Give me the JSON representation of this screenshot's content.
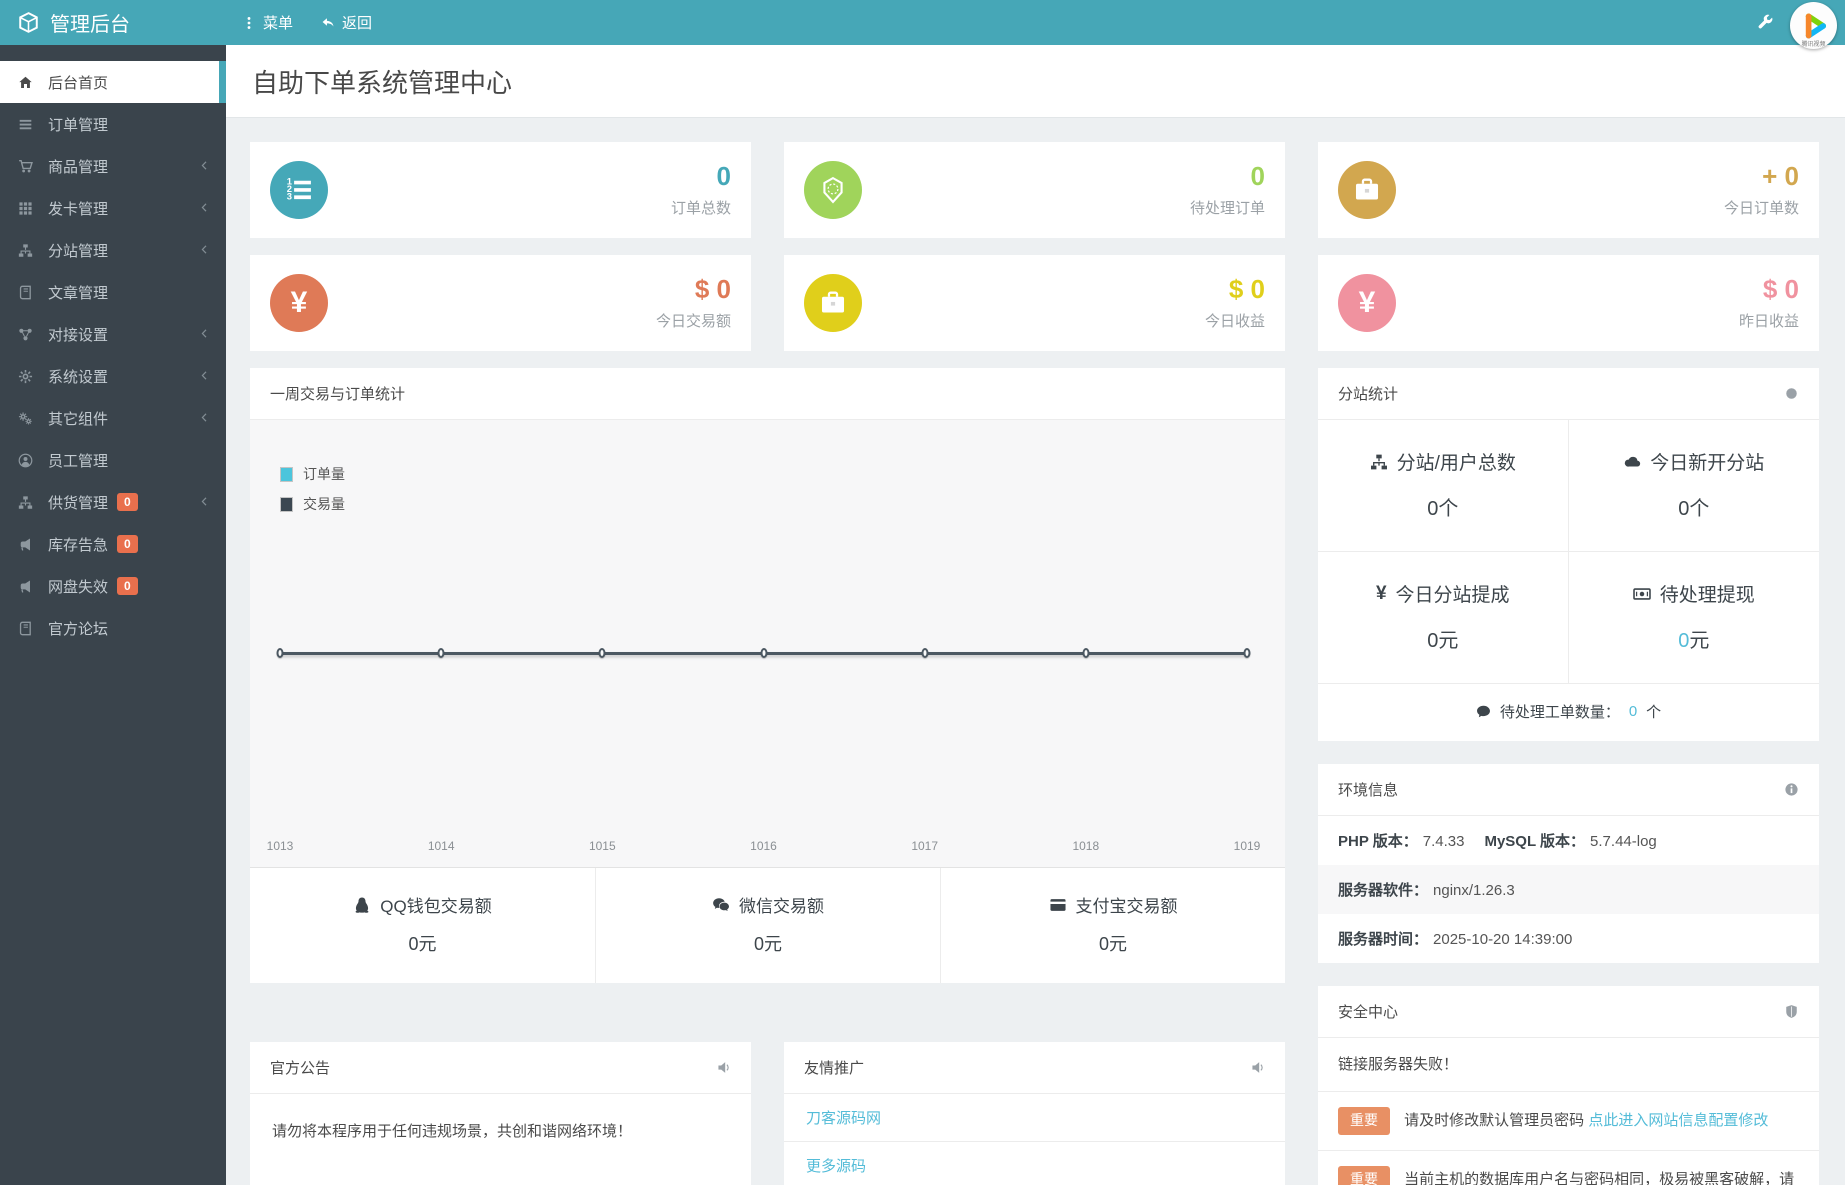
{
  "topbar": {
    "brand": "管理后台",
    "menu_label": "菜单",
    "back_label": "返回",
    "logo_text": "腾讯视频"
  },
  "page": {
    "title": "自助下单系统管理中心"
  },
  "sidebar": {
    "items": [
      {
        "name": "home",
        "icon": "home",
        "label": "后台首页",
        "active": true
      },
      {
        "name": "orders",
        "icon": "list",
        "label": "订单管理"
      },
      {
        "name": "products",
        "icon": "cart",
        "label": "商品管理",
        "chevron": true
      },
      {
        "name": "card-issuing",
        "icon": "grid",
        "label": "发卡管理",
        "chevron": true
      },
      {
        "name": "branches",
        "icon": "sitemap",
        "label": "分站管理",
        "chevron": true
      },
      {
        "name": "articles",
        "icon": "book",
        "label": "文章管理"
      },
      {
        "name": "integration",
        "icon": "share",
        "label": "对接设置",
        "chevron": true
      },
      {
        "name": "system-settings",
        "icon": "gear",
        "label": "系统设置",
        "chevron": true
      },
      {
        "name": "components",
        "icon": "cogs",
        "label": "其它组件",
        "chevron": true
      },
      {
        "name": "staff",
        "icon": "user",
        "label": "员工管理"
      },
      {
        "name": "supply",
        "icon": "sitemap",
        "label": "供货管理",
        "badge": "0",
        "chevron": true
      },
      {
        "name": "stock-alert",
        "icon": "bullhorn",
        "label": "库存告急",
        "badge": "0"
      },
      {
        "name": "netdisk-invalid",
        "icon": "bullhorn",
        "label": "网盘失效",
        "badge": "0"
      },
      {
        "name": "forum",
        "icon": "book",
        "label": "官方论坛"
      }
    ]
  },
  "stat_cards": [
    {
      "name": "total-orders",
      "icon": "list-ol",
      "color": "#45a8b8",
      "value": "0",
      "label": "订单总数"
    },
    {
      "name": "pending-orders",
      "icon": "gem",
      "color": "#a0d45b",
      "value": "0",
      "label": "待处理订单"
    },
    {
      "name": "today-orders",
      "icon": "briefcase",
      "color": "#d2a74f",
      "value": "+ 0",
      "label": "今日订单数"
    },
    {
      "name": "today-volume",
      "icon": "yen",
      "color": "#df7a57",
      "value": "$ 0",
      "label": "今日交易额"
    },
    {
      "name": "today-earnings",
      "icon": "briefcase",
      "color": "#e0cf1b",
      "value": "$ 0",
      "label": "今日收益"
    },
    {
      "name": "yesterday-earnings",
      "icon": "yen",
      "color": "#f0929f",
      "value": "$ 0",
      "label": "昨日收益"
    }
  ],
  "chart_panel": {
    "title": "一周交易与订单统计"
  },
  "chart_data": {
    "type": "line",
    "title": "一周交易与订单统计",
    "x_labels": [
      "1013",
      "1014",
      "1015",
      "1016",
      "1017",
      "1018",
      "1019"
    ],
    "series": [
      {
        "name": "订单量",
        "color": "#4cc5dc",
        "values": [
          0,
          0,
          0,
          0,
          0,
          0,
          0
        ]
      },
      {
        "name": "交易量",
        "color": "#3b4751",
        "values": [
          0,
          0,
          0,
          0,
          0,
          0,
          0
        ]
      }
    ],
    "ylim": [
      0,
      0
    ],
    "grid": false,
    "legend_position": "top-left",
    "marker": "circle"
  },
  "wallet_stats": [
    {
      "name": "qq",
      "icon": "qq",
      "label": "QQ钱包交易额",
      "value": "0元"
    },
    {
      "name": "wechat",
      "icon": "wechat",
      "label": "微信交易额",
      "value": "0元"
    },
    {
      "name": "alipay",
      "icon": "credit-card",
      "label": "支付宝交易额",
      "value": "0元"
    }
  ],
  "branch_panel": {
    "title": "分站统计",
    "cells": [
      {
        "name": "total-branches",
        "icon": "sitemap",
        "label": "分站/用户总数",
        "value_num": "0",
        "value_unit": "个",
        "accent": false
      },
      {
        "name": "new-branches-today",
        "icon": "cloud",
        "label": "今日新开分站",
        "value_num": "0",
        "value_unit": "个",
        "accent": false
      },
      {
        "name": "today-commission",
        "icon": "yen",
        "label": "今日分站提成",
        "value_num": "0",
        "value_unit": "元",
        "accent": false
      },
      {
        "name": "pending-withdrawal",
        "icon": "money-bill",
        "label": "待处理提现",
        "value_num": "0",
        "value_unit": "元",
        "accent": true
      }
    ],
    "footer": {
      "icon": "comment",
      "label": "待处理工单数量：",
      "value_num": "0",
      "value_unit": " 个"
    }
  },
  "env_panel": {
    "title": "环境信息",
    "rows": [
      [
        {
          "label": "PHP 版本：",
          "value": "7.4.33"
        },
        {
          "label": "MySQL 版本：",
          "value": "5.7.44-log"
        }
      ],
      [
        {
          "label": "服务器软件：",
          "value": "nginx/1.26.3"
        }
      ],
      [
        {
          "label": "服务器时间：",
          "value": "2025-10-20 14:39:00"
        }
      ]
    ]
  },
  "security_panel": {
    "title": "安全中心",
    "rows": [
      {
        "text": "链接服务器失败！"
      },
      {
        "badge": "重要",
        "text": "请及时修改默认管理员密码 ",
        "link": "点此进入网站信息配置修改"
      },
      {
        "badge": "重要",
        "text": "当前主机的数据库用户名与密码相同，极易被黑客破解，请及时修改数据库密码"
      }
    ]
  },
  "notice_panel": {
    "title": "官方公告",
    "body": "请勿将本程序用于任何违规场景，共创和谐网络环境！"
  },
  "links_panel": {
    "title": "友情推广",
    "links": [
      "刀客源码网",
      "更多源码"
    ]
  },
  "colors": {
    "topbar": "#46a7b7",
    "sidebar": "#3a444c",
    "accent": "#54bcd8",
    "sidebar_badge": "#e9704d",
    "important_badge": "#e89064",
    "line": "#4c5862"
  }
}
